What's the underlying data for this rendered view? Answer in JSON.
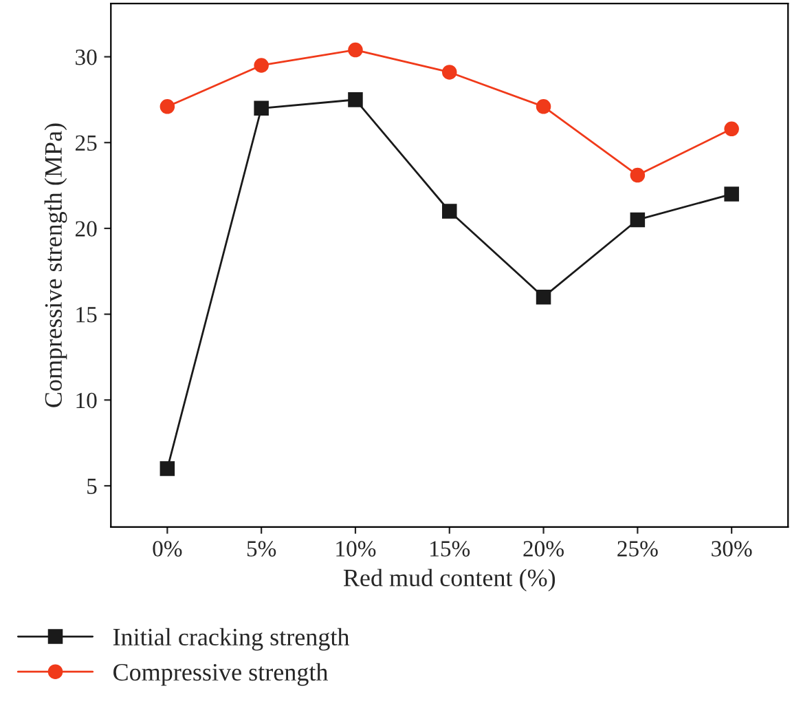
{
  "chart_data": {
    "type": "line",
    "xlabel": "Red mud content (%)",
    "ylabel": "Compressive strength (MPa)",
    "categories": [
      "0%",
      "5%",
      "10%",
      "15%",
      "20%",
      "25%",
      "30%"
    ],
    "series": [
      {
        "name": "Initial cracking strength",
        "color": "#1a1a1a",
        "marker": "square",
        "values": [
          6,
          27,
          27.5,
          21,
          16,
          20.5,
          22
        ]
      },
      {
        "name": "Compressive strength",
        "color": "#f03a1a",
        "marker": "circle",
        "values": [
          27.1,
          29.5,
          30.4,
          29.1,
          27.1,
          23.1,
          25.8
        ]
      }
    ],
    "ylim": [
      2.6,
      33.1
    ],
    "yticks": [
      5,
      10,
      15,
      20,
      25,
      30
    ],
    "grid": false,
    "legend": "bottom",
    "line_style": "solid"
  }
}
